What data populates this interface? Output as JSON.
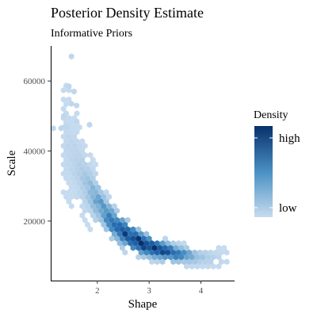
{
  "chart_data": {
    "type": "heatmap",
    "subtype": "hexbin",
    "title": "Posterior Density Estimate",
    "subtitle": "Informative Priors",
    "xlabel": "Shape",
    "ylabel": "Scale",
    "xlim": [
      1.1,
      4.65
    ],
    "ylim": [
      3000,
      70000
    ],
    "x_ticks": [
      2,
      3,
      4
    ],
    "x_tick_labels": [
      "2",
      "3",
      "4"
    ],
    "y_ticks": [
      20000,
      40000,
      60000
    ],
    "y_tick_labels": [
      "20000",
      "40000",
      "60000"
    ],
    "grid": false,
    "legend": {
      "title": "Density",
      "position": "right",
      "labels": [
        "high",
        "low"
      ],
      "color_high": "#08306b",
      "color_low": "#c6dbef"
    },
    "density_ridge": [
      {
        "shape": 1.4,
        "scale": 42000
      },
      {
        "shape": 1.6,
        "scale": 36000
      },
      {
        "shape": 1.8,
        "scale": 30000
      },
      {
        "shape": 2.0,
        "scale": 25500
      },
      {
        "shape": 2.2,
        "scale": 21000
      },
      {
        "shape": 2.4,
        "scale": 18000
      },
      {
        "shape": 2.6,
        "scale": 15800
      },
      {
        "shape": 2.8,
        "scale": 14000
      },
      {
        "shape": 3.0,
        "scale": 12800
      },
      {
        "shape": 3.2,
        "scale": 11800
      },
      {
        "shape": 3.5,
        "scale": 10800
      },
      {
        "shape": 3.8,
        "scale": 10000
      },
      {
        "shape": 4.1,
        "scale": 9500
      },
      {
        "shape": 4.5,
        "scale": 9200
      }
    ],
    "density_peak": {
      "shape": 2.9,
      "scale": 13000
    },
    "outliers": [
      {
        "shape": 1.5,
        "scale": 67000
      },
      {
        "shape": 1.45,
        "scale": 58500
      },
      {
        "shape": 1.55,
        "scale": 57000
      },
      {
        "shape": 1.5,
        "scale": 53500
      },
      {
        "shape": 1.6,
        "scale": 53000
      },
      {
        "shape": 1.35,
        "scale": 50000
      },
      {
        "shape": 1.6,
        "scale": 48500
      },
      {
        "shape": 1.15,
        "scale": 46500
      },
      {
        "shape": 1.3,
        "scale": 46500
      },
      {
        "shape": 1.4,
        "scale": 47000
      },
      {
        "shape": 1.85,
        "scale": 47500
      }
    ]
  }
}
